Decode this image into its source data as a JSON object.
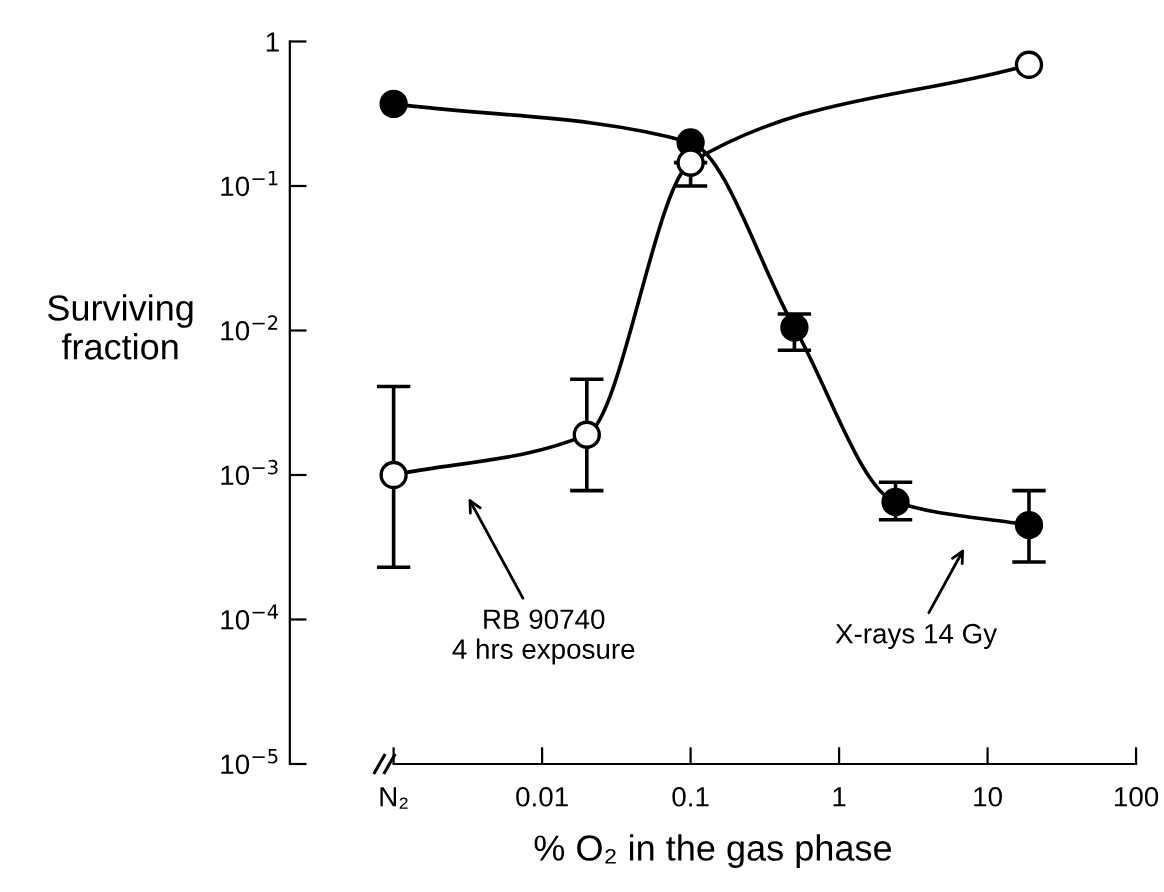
{
  "chart_data": {
    "type": "line",
    "xlabel": "% O₂ in the gas phase",
    "ylabel": "Surviving\nfraction",
    "log": "xy",
    "marker": "circle",
    "line_style": "solid",
    "grid": false,
    "xlim": [
      0.0002,
      100
    ],
    "ylim": [
      1e-05,
      1
    ],
    "xticks": [
      {
        "value": 0.001,
        "label": "N₂"
      },
      0.01,
      0.1,
      1,
      10,
      100
    ],
    "yticks": [
      {
        "value": 1e-05,
        "label": "10$^{−5}$"
      },
      {
        "value": 0.0001,
        "label": "10$^{−4}$"
      },
      {
        "value": 0.001,
        "label": "10$^{−3}$"
      },
      {
        "value": 0.01,
        "label": "10$^{−2}$"
      },
      {
        "value": 0.1,
        "label": "10$^{−1}$"
      },
      1
    ],
    "series": [
      {
        "color": "#000000",
        "x": [
          0.001,
          0.1,
          0.5,
          2.4,
          19
        ],
        "values": [
          0.37,
          0.2,
          0.0105,
          0.00065,
          0.00045
        ],
        "errors": [
          null,
          null,
          [
            0.0073,
            0.013
          ],
          [
            0.00049,
            0.00089
          ],
          [
            0.00025,
            0.00078
          ]
        ]
      },
      {
        "color": "#000000",
        "x": [
          0.001,
          0.02,
          0.1,
          19
        ],
        "values": [
          0.001,
          0.0019,
          0.145,
          0.69
        ],
        "errors": [
          [
            0.00023,
            0.0041
          ],
          [
            0.00078,
            0.0046
          ],
          [
            0.1,
            0.145
          ],
          null
        ]
      }
    ],
    "annotations": [
      "RB 90740\n4 hrs exposure",
      "X-rays 14 Gy"
    ]
  }
}
